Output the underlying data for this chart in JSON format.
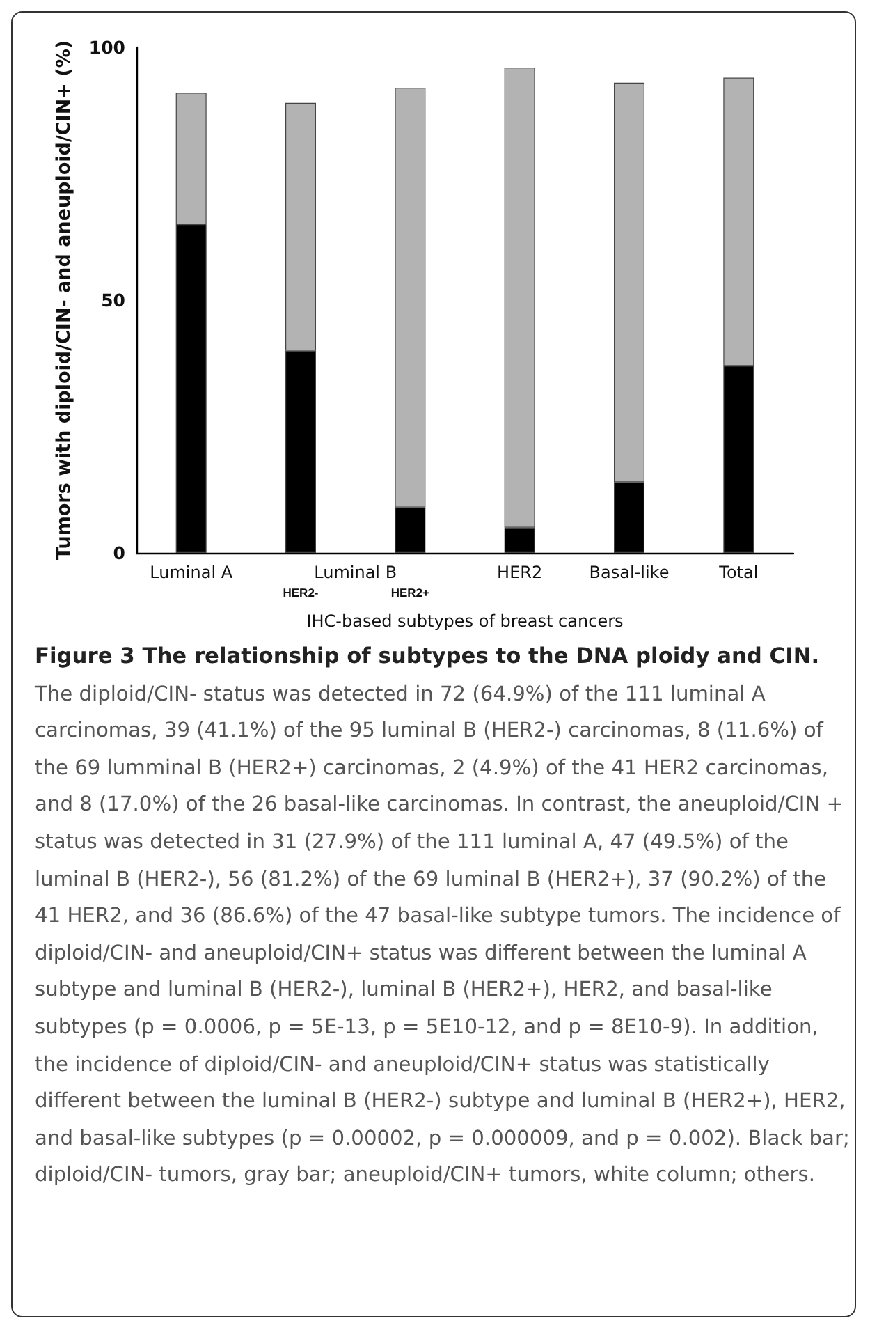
{
  "chart_data": {
    "type": "bar",
    "title": "Figure 3 The relationship of subtypes to the DNA ploidy and CIN.",
    "xlabel": "IHC-based subtypes of breast cancers",
    "ylabel": "Tumors with diploid/CIN- and aneuploid/CIN+ (%)",
    "categories": [
      "Luminal A",
      null,
      null,
      "HER2",
      "Basal-like",
      "Total"
    ],
    "series": [
      {
        "color": "#000000",
        "values": [
          65,
          40,
          9,
          5,
          14,
          37
        ]
      },
      {
        "color": "#b3b3b3",
        "values": [
          26,
          49,
          83,
          91,
          79,
          57
        ]
      }
    ],
    "stacked": true,
    "ylim": [
      0,
      100
    ],
    "yticks": [
      0,
      50,
      100
    ],
    "grid": false,
    "annotations": [
      "Luminal B",
      "HER2-",
      "HER2+",
      "The diploid/CIN- status was detected in 72 (64.9%) of the 111 luminal A carcinomas, 39 (41.1%) of the 95 luminal B (HER2-) carcinomas, 8 (11.6%) of the 69 lumminal B (HER2+) carcinomas, 2 (4.9%) of the 41 HER2 carcinomas, and 8 (17.0%) of the 26 basal-like carcinomas. In contrast, the aneuploid/CIN + status was detected in 31 (27.9%) of the 111 luminal A, 47 (49.5%) of the luminal B (HER2-), 56 (81.2%) of the 69 luminal B (HER2+), 37 (90.2%) of the 41 HER2, and 36 (86.6%) of the 47 basal-like subtype tumors. The incidence of diploid/CIN- and aneuploid/CIN+ status was different between the luminal A subtype and luminal B (HER2-), luminal B (HER2+), HER2, and basal-like subtypes (p = 0.0006, p = 5E-13, p = 5E10-12, and p = 8E10-9). In addition, the incidence of diploid/CIN- and aneuploid/CIN+ status was statistically different between the luminal B (HER2-) subtype and luminal B (HER2+), HER2, and basal-like subtypes (p = 0.00002, p = 0.000009, and p = 0.002). Black bar; diploid/CIN- tumors, gray bar; aneuploid/CIN+ tumors, white column; others."
    ]
  }
}
